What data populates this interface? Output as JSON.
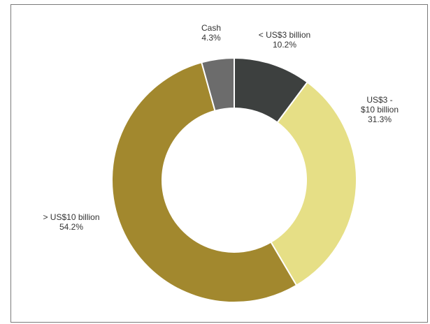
{
  "chart_data": {
    "type": "pie",
    "variant": "donut",
    "title": "",
    "categories": [
      "< US$3 billion",
      "US$3 - $10 billion",
      "> US$10 billion",
      "Cash"
    ],
    "values": [
      10.2,
      31.3,
      54.2,
      4.3
    ],
    "value_labels": [
      "10.2%",
      "31.3%",
      "54.2%",
      "4.3%"
    ],
    "label_lines": [
      [
        "< US$3 billion",
        "10.2%"
      ],
      [
        "US$3 -",
        "$10 billion",
        "31.3%"
      ],
      [
        "> US$10 billion",
        "54.2%"
      ],
      [
        "Cash",
        "4.3%"
      ]
    ],
    "colors": [
      "#3d403f",
      "#e6df86",
      "#a2882e",
      "#6c6c6c"
    ],
    "legend": "none"
  }
}
